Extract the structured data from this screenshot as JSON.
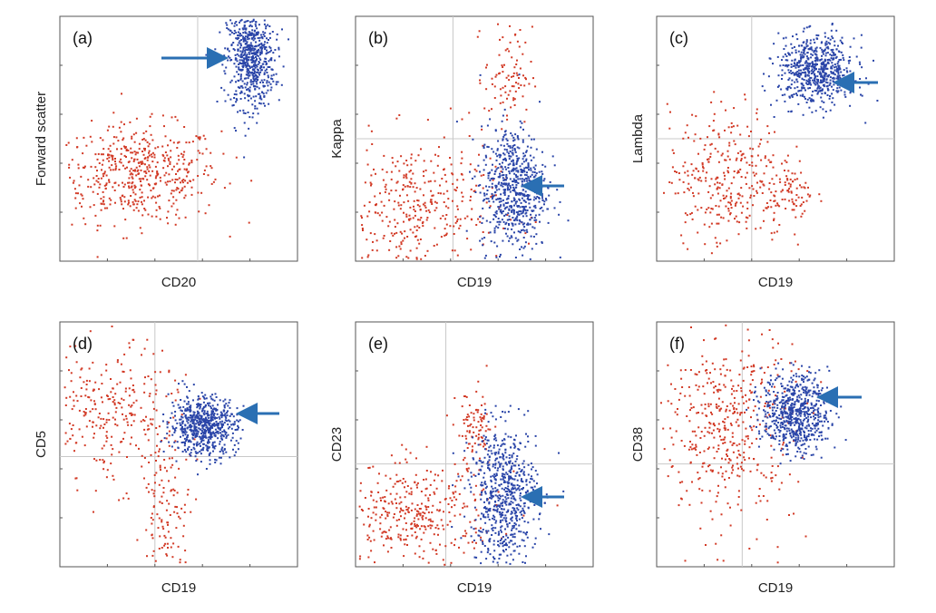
{
  "figure": {
    "background": "#ffffff",
    "colors": {
      "target_population": "#2a45a8",
      "other_events": "#d23a26",
      "arrow": "#2a6fb3",
      "frame": "#555555",
      "quadrant_line": "#c8c8c8"
    }
  },
  "chart_data": [
    {
      "type": "scatter",
      "panel": "(a)",
      "xlabel": "CD20",
      "ylabel": "Forward scatter",
      "xlim": [
        0,
        1
      ],
      "ylim": [
        0,
        1
      ],
      "grid": false,
      "quadrant_lines": {
        "x": 0.58
      },
      "annotations": [
        {
          "type": "arrow",
          "points_to": "blue cluster",
          "direction": "right"
        }
      ],
      "series": [
        {
          "color": "#2a45a8",
          "cluster": {
            "center": [
              0.8,
              0.83
            ],
            "spread": [
              0.05,
              0.1
            ],
            "count": 650
          }
        },
        {
          "color": "#d23a26",
          "cluster": {
            "center": [
              0.33,
              0.36
            ],
            "spread": [
              0.17,
              0.1
            ],
            "count": 520
          }
        }
      ]
    },
    {
      "type": "scatter",
      "panel": "(b)",
      "xlabel": "CD19",
      "ylabel": "Kappa",
      "xlim": [
        0,
        1
      ],
      "ylim": [
        0,
        1
      ],
      "grid": false,
      "quadrant_lines": {
        "x": 0.41,
        "y": 0.5
      },
      "annotations": [
        {
          "type": "arrow",
          "points_to": "blue cluster",
          "direction": "left"
        }
      ],
      "series": [
        {
          "color": "#2a45a8",
          "cluster": {
            "center": [
              0.66,
              0.3
            ],
            "spread": [
              0.07,
              0.13
            ],
            "count": 650
          }
        },
        {
          "color": "#d23a26",
          "cluster": {
            "center": [
              0.25,
              0.22
            ],
            "spread": [
              0.17,
              0.14
            ],
            "count": 380
          }
        },
        {
          "color": "#d23a26",
          "cluster": {
            "center": [
              0.64,
              0.76
            ],
            "spread": [
              0.05,
              0.1
            ],
            "count": 90
          }
        }
      ]
    },
    {
      "type": "scatter",
      "panel": "(c)",
      "xlabel": "CD19",
      "ylabel": "Lambda",
      "xlim": [
        0,
        1
      ],
      "ylim": [
        0,
        1
      ],
      "grid": false,
      "quadrant_lines": {
        "x": 0.4,
        "y": 0.5
      },
      "annotations": [
        {
          "type": "arrow",
          "points_to": "blue cluster",
          "direction": "left"
        }
      ],
      "series": [
        {
          "color": "#2a45a8",
          "cluster": {
            "center": [
              0.67,
              0.78
            ],
            "spread": [
              0.08,
              0.07
            ],
            "count": 650
          }
        },
        {
          "color": "#d23a26",
          "cluster": {
            "center": [
              0.29,
              0.35
            ],
            "spread": [
              0.12,
              0.14
            ],
            "count": 320
          }
        },
        {
          "color": "#d23a26",
          "cluster": {
            "center": [
              0.56,
              0.29
            ],
            "spread": [
              0.05,
              0.07
            ],
            "count": 80
          }
        }
      ]
    },
    {
      "type": "scatter",
      "panel": "(d)",
      "xlabel": "CD19",
      "ylabel": "CD5",
      "xlim": [
        0,
        1
      ],
      "ylim": [
        0,
        1
      ],
      "grid": false,
      "quadrant_lines": {
        "x": 0.4,
        "y": 0.45
      },
      "annotations": [
        {
          "type": "arrow",
          "points_to": "blue cluster",
          "direction": "left"
        }
      ],
      "series": [
        {
          "color": "#2a45a8",
          "cluster": {
            "center": [
              0.6,
              0.58
            ],
            "spread": [
              0.07,
              0.06
            ],
            "count": 650
          }
        },
        {
          "color": "#d23a26",
          "cluster": {
            "center": [
              0.2,
              0.62
            ],
            "spread": [
              0.15,
              0.14
            ],
            "count": 300
          }
        },
        {
          "color": "#d23a26",
          "cluster": {
            "center": [
              0.45,
              0.22
            ],
            "spread": [
              0.05,
              0.16
            ],
            "count": 130
          }
        }
      ]
    },
    {
      "type": "scatter",
      "panel": "(e)",
      "xlabel": "CD19",
      "ylabel": "CD23",
      "xlim": [
        0,
        1
      ],
      "ylim": [
        0,
        1
      ],
      "grid": false,
      "quadrant_lines": {
        "x": 0.38,
        "y": 0.42
      },
      "annotations": [
        {
          "type": "arrow",
          "points_to": "blue cluster",
          "direction": "left"
        }
      ],
      "series": [
        {
          "color": "#2a45a8",
          "cluster": {
            "center": [
              0.62,
              0.3
            ],
            "spread": [
              0.07,
              0.14
            ],
            "count": 650
          }
        },
        {
          "color": "#d23a26",
          "cluster": {
            "center": [
              0.24,
              0.22
            ],
            "spread": [
              0.17,
              0.1
            ],
            "count": 380
          }
        },
        {
          "color": "#d23a26",
          "cluster": {
            "center": [
              0.5,
              0.56
            ],
            "spread": [
              0.04,
              0.08
            ],
            "count": 90
          }
        }
      ]
    },
    {
      "type": "scatter",
      "panel": "(f)",
      "xlabel": "CD19",
      "ylabel": "CD38",
      "xlim": [
        0,
        1
      ],
      "ylim": [
        0,
        1
      ],
      "grid": false,
      "quadrant_lines": {
        "x": 0.36,
        "y": 0.42
      },
      "annotations": [
        {
          "type": "arrow",
          "points_to": "blue cluster",
          "direction": "left"
        }
      ],
      "series": [
        {
          "color": "#2a45a8",
          "cluster": {
            "center": [
              0.58,
              0.63
            ],
            "spread": [
              0.07,
              0.08
            ],
            "count": 650
          }
        },
        {
          "color": "#d23a26",
          "cluster": {
            "center": [
              0.3,
              0.58
            ],
            "spread": [
              0.14,
              0.2
            ],
            "count": 460
          }
        }
      ]
    }
  ]
}
